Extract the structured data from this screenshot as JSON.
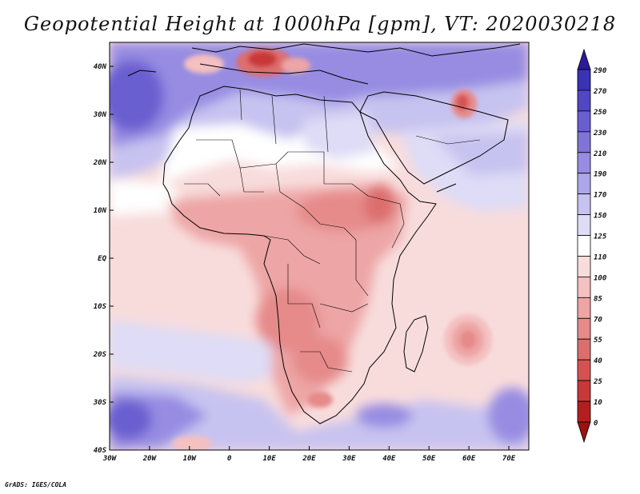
{
  "title": "Geopotential Height at 1000hPa [gpm], VT: 2020030218",
  "footer": "GrADS: IGES/COLA",
  "map": {
    "projection": "latlon",
    "lon_range": [
      -30,
      75
    ],
    "lat_range": [
      -40,
      45
    ],
    "lon_ticks": [
      "30W",
      "20W",
      "10W",
      "0",
      "10E",
      "20E",
      "30E",
      "40E",
      "50E",
      "60E",
      "70E"
    ],
    "lat_ticks": [
      "40N",
      "30N",
      "20N",
      "10N",
      "EQ",
      "10S",
      "20S",
      "30S",
      "40S"
    ],
    "variable": "Geopotential Height",
    "level": "1000hPa",
    "units": "gpm",
    "valid_time": "2020030218"
  },
  "colorbar": {
    "levels": [
      "290",
      "270",
      "250",
      "230",
      "210",
      "190",
      "170",
      "150",
      "125",
      "110",
      "100",
      "85",
      "70",
      "55",
      "40",
      "25",
      "10",
      "0"
    ],
    "colors": [
      "#2b1a9a",
      "#3a32b4",
      "#5047c4",
      "#6a5fd0",
      "#8074d8",
      "#978ce2",
      "#ada6e8",
      "#c7c3f0",
      "#dedcf6",
      "#ffffff",
      "#f8dcdc",
      "#f4c0c0",
      "#eda5a5",
      "#e68a8a",
      "#dd6e6e",
      "#d65252",
      "#c93838",
      "#b51e1e",
      "#9c1010"
    ]
  }
}
